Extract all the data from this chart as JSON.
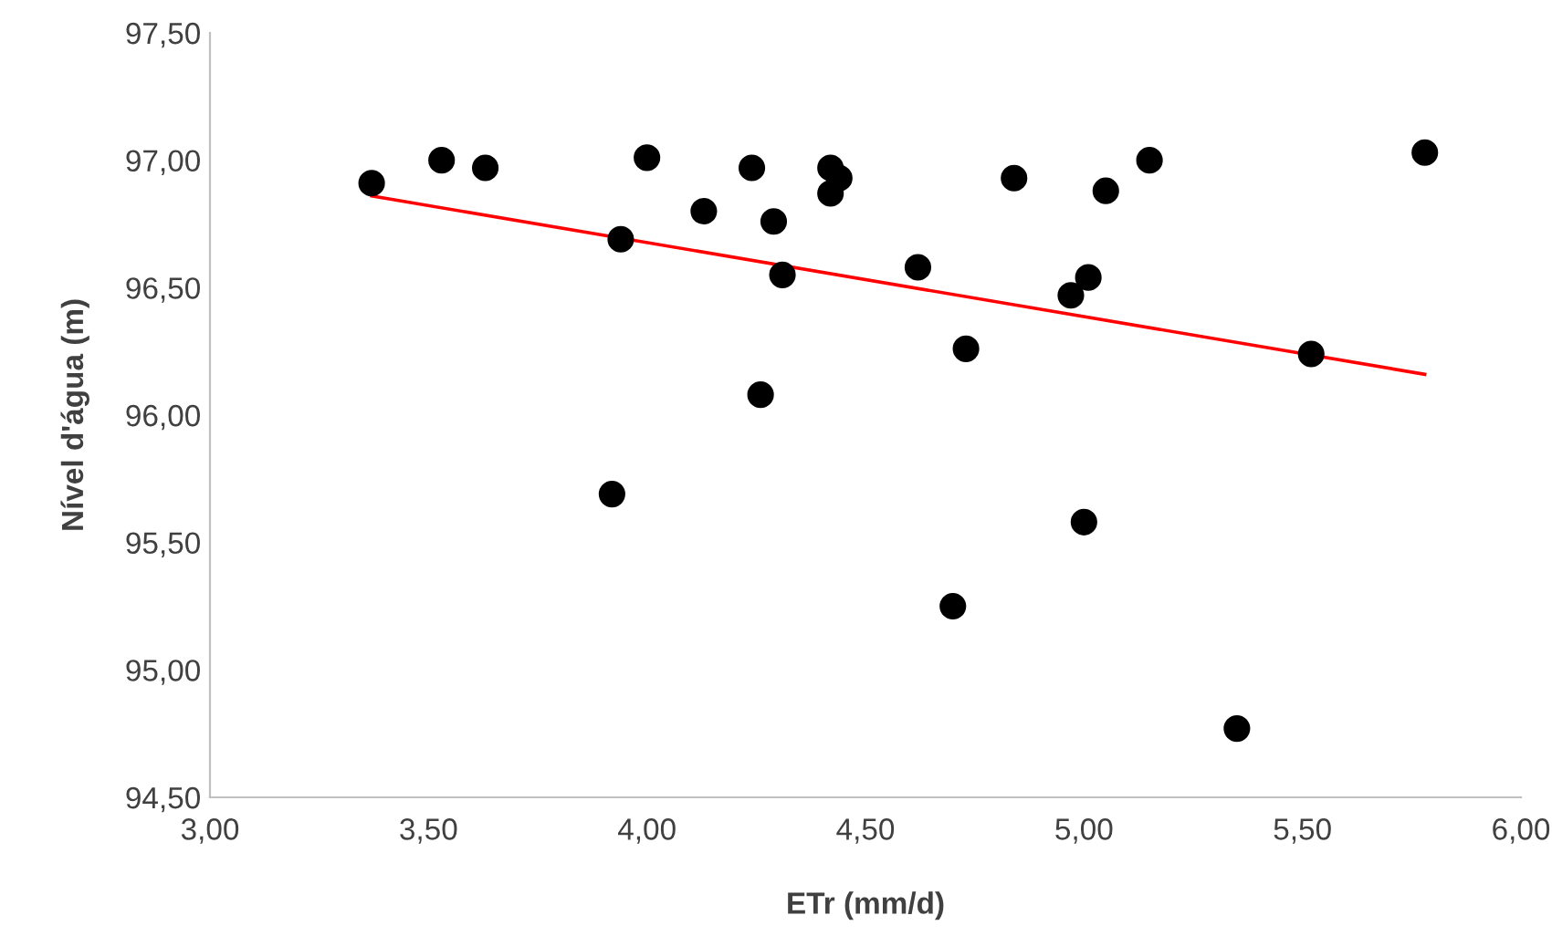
{
  "chart_data": {
    "type": "scatter",
    "xlabel": "ETr (mm/d)",
    "ylabel": "Nível d'água (m)",
    "xlim": [
      3,
      6
    ],
    "ylim": [
      94.5,
      97.5
    ],
    "xticks": [
      {
        "value": 3,
        "label": "3,00"
      },
      {
        "value": 3.5,
        "label": "3,50"
      },
      {
        "value": 4,
        "label": "4,00"
      },
      {
        "value": 4.5,
        "label": "4,50"
      },
      {
        "value": 5,
        "label": "5,00"
      },
      {
        "value": 5.5,
        "label": "5,50"
      },
      {
        "value": 6,
        "label": "6,00"
      }
    ],
    "yticks": [
      {
        "value": 94.5,
        "label": "94,50"
      },
      {
        "value": 95,
        "label": "95,00"
      },
      {
        "value": 95.5,
        "label": "95,50"
      },
      {
        "value": 96,
        "label": "96,00"
      },
      {
        "value": 96.5,
        "label": "96,50"
      },
      {
        "value": 97,
        "label": "97,00"
      },
      {
        "value": 97.5,
        "label": "97,50"
      }
    ],
    "grid": false,
    "legend": false,
    "marker": "circle",
    "series": [
      {
        "color": "#000000",
        "x": [
          3.37,
          3.53,
          3.63,
          4.0,
          3.94,
          3.92,
          4.13,
          4.24,
          4.29,
          4.31,
          4.26,
          4.42,
          4.44,
          4.42,
          4.62,
          4.73,
          4.7,
          4.84,
          4.97,
          5.01,
          5.05,
          5.0,
          5.15,
          5.35,
          5.52,
          5.78
        ],
        "values": [
          96.91,
          97.0,
          96.97,
          97.01,
          96.69,
          95.69,
          96.8,
          96.97,
          96.76,
          96.55,
          96.08,
          96.97,
          96.93,
          96.87,
          96.58,
          96.26,
          95.25,
          96.93,
          96.47,
          96.54,
          96.88,
          95.58,
          97.0,
          94.77,
          96.24,
          97.03
        ]
      },
      {
        "type": "line",
        "color": "#ff0000",
        "line_style": "solid",
        "marker": "none",
        "x": [
          3.37,
          5.78
        ],
        "values": [
          96.86,
          96.16
        ]
      }
    ]
  }
}
